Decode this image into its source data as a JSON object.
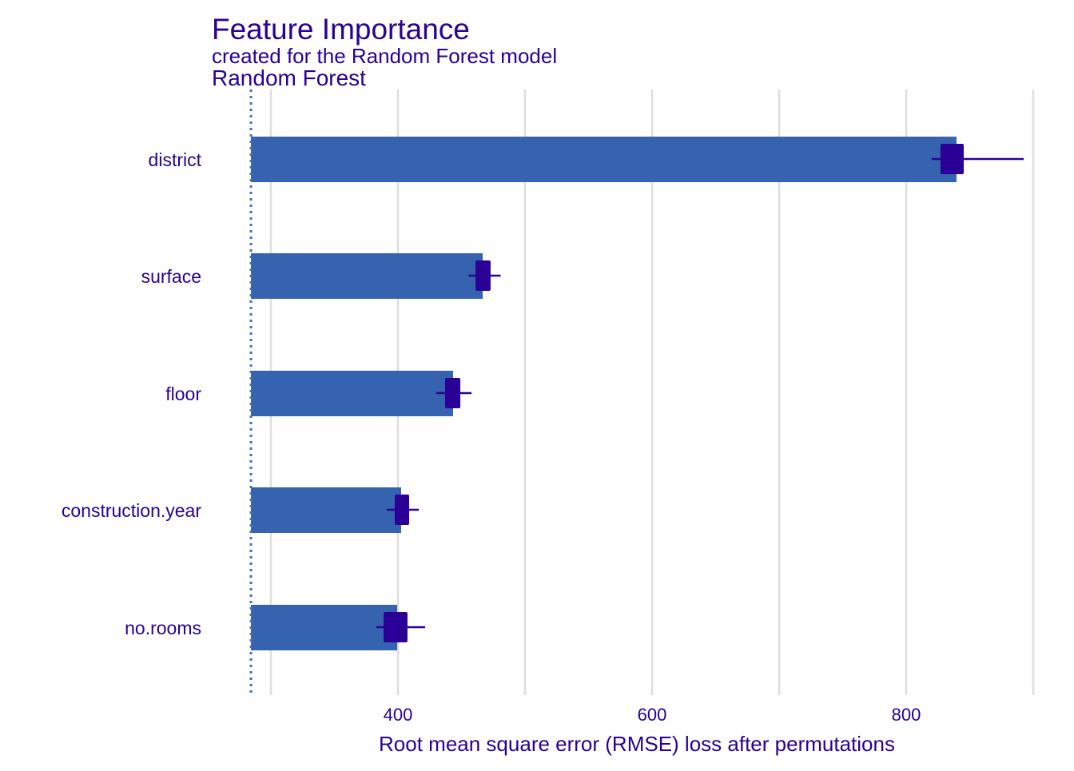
{
  "chart_data": {
    "type": "bar",
    "title": "Feature Importance",
    "subtitle": "created for the Random Forest model",
    "panel_label": "Random Forest",
    "xlabel": "Root mean square error (RMSE) loss after permutations",
    "ylabel": "",
    "orientation": "horizontal",
    "baseline": 284.3,
    "xticks": [
      400,
      600,
      800
    ],
    "minor_gridlines": [
      300,
      500,
      700,
      900
    ],
    "grid": true,
    "categories": [
      "district",
      "surface",
      "floor",
      "construction.year",
      "no.rooms"
    ],
    "values": [
      839.6,
      466.7,
      443.4,
      402.5,
      399.4
    ],
    "boxplots": [
      {
        "whisker_low": 820.1,
        "q1": 827.0,
        "q3": 845.3,
        "whisker_high": 892.5
      },
      {
        "whisker_low": 455.6,
        "q1": 461.0,
        "q3": 472.9,
        "whisker_high": 480.8
      },
      {
        "whisker_low": 430.2,
        "q1": 437.1,
        "q3": 449.1,
        "whisker_high": 457.9
      },
      {
        "whisker_low": 391.2,
        "q1": 397.5,
        "q3": 408.8,
        "whisker_high": 416.4
      },
      {
        "whisker_low": 383.0,
        "q1": 388.7,
        "q3": 407.5,
        "whisker_high": 421.4
      }
    ],
    "colors": {
      "bar": "#3563b0",
      "box": "#2a0096",
      "text": "#2a0096",
      "grid": "#dedede",
      "baseline": "#3b6fc4"
    }
  }
}
